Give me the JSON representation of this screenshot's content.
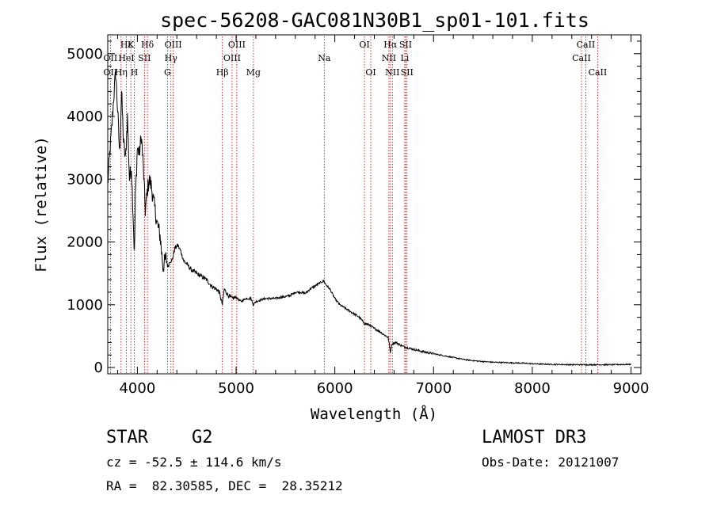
{
  "chart_data": {
    "type": "line",
    "title": "spec-56208-GAC081N30B1_sp01-101.fits",
    "xlabel": "Wavelength (Å)",
    "ylabel": "Flux (relative)",
    "xlim": [
      3700,
      9100
    ],
    "ylim": [
      -100,
      5300
    ],
    "x_ticks": [
      4000,
      5000,
      6000,
      7000,
      8000,
      9000
    ],
    "y_ticks": [
      0,
      1000,
      2000,
      3000,
      4000,
      5000
    ],
    "series": [
      {
        "name": "flux",
        "x": [
          3700,
          3720,
          3740,
          3760,
          3780,
          3800,
          3820,
          3840,
          3860,
          3880,
          3900,
          3920,
          3940,
          3960,
          3970,
          3980,
          4000,
          4020,
          4040,
          4060,
          4080,
          4100,
          4120,
          4140,
          4160,
          4180,
          4200,
          4230,
          4260,
          4290,
          4310,
          4330,
          4350,
          4380,
          4410,
          4440,
          4470,
          4500,
          4550,
          4600,
          4650,
          4700,
          4750,
          4800,
          4830,
          4861,
          4880,
          4920,
          4960,
          5000,
          5050,
          5100,
          5150,
          5175,
          5200,
          5250,
          5300,
          5350,
          5400,
          5450,
          5500,
          5550,
          5600,
          5650,
          5700,
          5750,
          5800,
          5850,
          5890,
          5910,
          5950,
          6000,
          6050,
          6100,
          6150,
          6200,
          6250,
          6300,
          6350,
          6400,
          6450,
          6500,
          6540,
          6563,
          6580,
          6620,
          6650,
          6700,
          6750,
          6800,
          6900,
          7000,
          7100,
          7200,
          7300,
          7400,
          7500,
          7600,
          7700,
          7800,
          7900,
          8000,
          8100,
          8200,
          8300,
          8400,
          8500,
          8600,
          8700,
          8800,
          8900,
          9000
        ],
        "values": [
          2900,
          3400,
          3800,
          4300,
          4700,
          4100,
          3400,
          4400,
          3600,
          3300,
          4000,
          3000,
          3200,
          2300,
          1800,
          2700,
          3500,
          3400,
          3700,
          3200,
          2500,
          2800,
          3000,
          2900,
          2700,
          2500,
          2300,
          2100,
          1600,
          1750,
          1600,
          1700,
          1700,
          1900,
          1950,
          1850,
          1700,
          1650,
          1550,
          1500,
          1450,
          1400,
          1300,
          1250,
          1200,
          1000,
          1250,
          1150,
          1100,
          1120,
          1050,
          1100,
          1100,
          1000,
          1050,
          1080,
          1100,
          1100,
          1100,
          1120,
          1130,
          1150,
          1200,
          1200,
          1180,
          1250,
          1300,
          1350,
          1380,
          1320,
          1250,
          1100,
          1000,
          950,
          900,
          850,
          800,
          700,
          680,
          620,
          580,
          520,
          480,
          250,
          380,
          400,
          370,
          330,
          310,
          290,
          250,
          220,
          190,
          160,
          130,
          110,
          95,
          85,
          80,
          75,
          70,
          60,
          55,
          50,
          48,
          45,
          45,
          45,
          45,
          45,
          48,
          50
        ]
      }
    ],
    "line_markers": [
      {
        "label": "Hε",
        "x": 3889,
        "row": 1
      },
      {
        "label": "K",
        "x": 3934,
        "row": 1
      },
      {
        "label": "Hδ",
        "x": 4102,
        "row": 1
      },
      {
        "label": "OIII",
        "x": 4363,
        "row": 1
      },
      {
        "label": "OIII",
        "x": 5007,
        "row": 1
      },
      {
        "label": "OI",
        "x": 6300,
        "row": 1
      },
      {
        "label": "Hα",
        "x": 6563,
        "row": 1
      },
      {
        "label": "SII",
        "x": 6717,
        "row": 1
      },
      {
        "label": "CaII",
        "x": 8542,
        "row": 1
      },
      {
        "label": "OII",
        "x": 3727,
        "row": 2
      },
      {
        "label": "HeI",
        "x": 3889,
        "row": 2
      },
      {
        "label": "SII",
        "x": 4072,
        "row": 2
      },
      {
        "label": "Hγ",
        "x": 4340,
        "row": 2
      },
      {
        "label": "OIII",
        "x": 4959,
        "row": 2
      },
      {
        "label": "Na",
        "x": 5893,
        "row": 2
      },
      {
        "label": "NII",
        "x": 6548,
        "row": 2
      },
      {
        "label": "Li",
        "x": 6708,
        "row": 2
      },
      {
        "label": "CaII",
        "x": 8498,
        "row": 2
      },
      {
        "label": "OII",
        "x": 3727,
        "row": 3
      },
      {
        "label": "Hη",
        "x": 3835,
        "row": 3
      },
      {
        "label": "H",
        "x": 3969,
        "row": 3
      },
      {
        "label": "G",
        "x": 4305,
        "row": 3
      },
      {
        "label": "Hβ",
        "x": 4861,
        "row": 3
      },
      {
        "label": "Mg",
        "x": 5175,
        "row": 3
      },
      {
        "label": "OI",
        "x": 6364,
        "row": 3
      },
      {
        "label": "NII",
        "x": 6583,
        "row": 3
      },
      {
        "label": "SII",
        "x": 6731,
        "row": 3
      },
      {
        "label": "CaII",
        "x": 8662,
        "row": 3
      }
    ]
  },
  "info": {
    "class": "STAR",
    "subclass": "G2",
    "survey": "LAMOST DR3",
    "cz": "cz = -52.5 ± 114.6 km/s",
    "obs_date": "Obs-Date: 20121007",
    "coords": "RA =  82.30585, DEC =  28.35212"
  }
}
